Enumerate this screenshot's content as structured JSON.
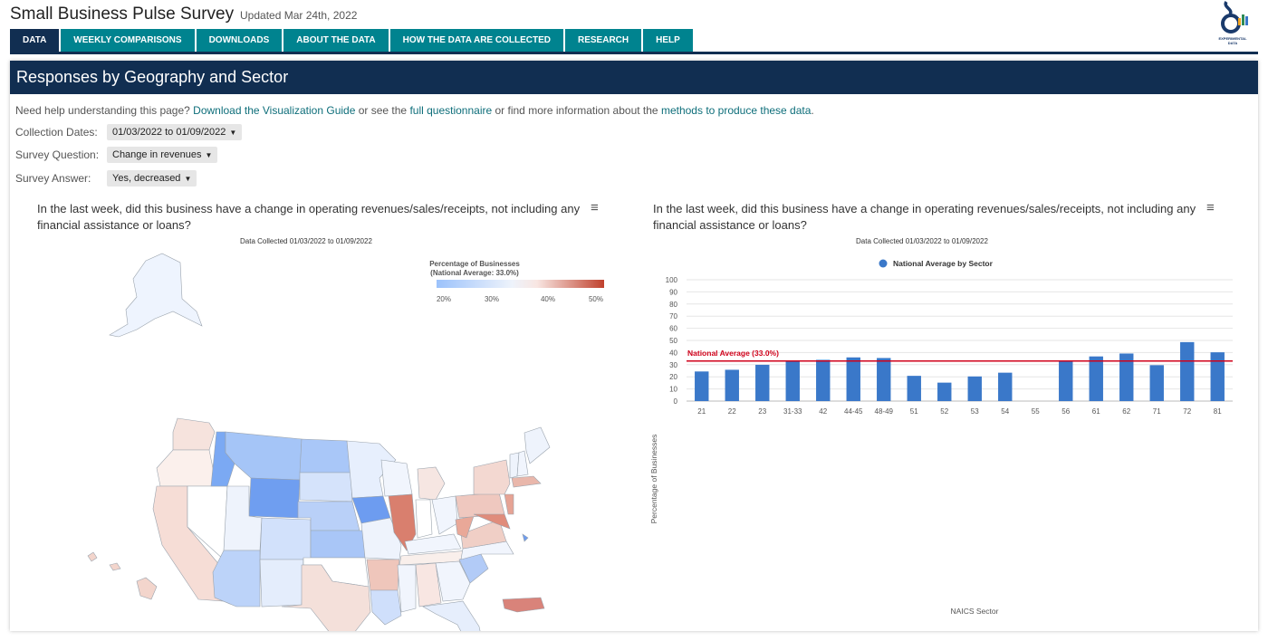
{
  "header": {
    "title": "Small Business Pulse Survey",
    "updated": "Updated Mar 24th, 2022",
    "logo_text": "EXPERIMENTAL DATA"
  },
  "nav": {
    "tabs": [
      "DATA",
      "WEEKLY COMPARISONS",
      "DOWNLOADS",
      "ABOUT THE DATA",
      "HOW THE DATA ARE COLLECTED",
      "RESEARCH",
      "HELP"
    ],
    "active": "DATA"
  },
  "panel": {
    "title": "Responses by Geography and Sector",
    "help": {
      "t1": "Need help understanding this page? ",
      "l1": "Download the Visualization Guide",
      "t2": " or see the ",
      "l2": "full questionnaire",
      "t3": " or find more information about the ",
      "l3": "methods to produce these data",
      "t4": "."
    }
  },
  "filters": {
    "collection_label": "Collection Dates:",
    "collection_value": "01/03/2022 to 01/09/2022",
    "question_label": "Survey Question:",
    "question_value": "Change in revenues",
    "answer_label": "Survey Answer:",
    "answer_value": "Yes, decreased"
  },
  "map": {
    "title": "In the last week, did this business have a change in operating revenues/sales/receipts, not including any financial assistance or loans?",
    "subtitle": "Data Collected 01/03/2022 to 01/09/2022",
    "legend_title": "Percentage of Businesses",
    "legend_sub": "(National Average: 33.0%)",
    "legend_ticks": [
      "20%",
      "30%",
      "40%",
      "50%"
    ],
    "colors": {
      "low": "#4f8ef7",
      "mid": "#ffffff",
      "high": "#c0412d"
    }
  },
  "chart_data": {
    "type": "bar",
    "title": "In the last week, did this business have a change in operating revenues/sales/receipts, not including any financial assistance or loans?",
    "subtitle": "Data Collected 01/03/2022 to 01/09/2022",
    "categories": [
      "21",
      "22",
      "23",
      "31-33",
      "42",
      "44-45",
      "48-49",
      "51",
      "52",
      "53",
      "54",
      "55",
      "56",
      "61",
      "62",
      "71",
      "72",
      "81"
    ],
    "series": [
      {
        "name": "National Average by Sector",
        "values": [
          24.4,
          25.8,
          29.9,
          32.8,
          34.0,
          36.0,
          35.5,
          20.8,
          15.2,
          20.3,
          23.4,
          null,
          33.6,
          36.8,
          39.2,
          29.6,
          48.6,
          40.2
        ]
      }
    ],
    "xlabel": "NAICS Sector",
    "ylabel": "Percentage of Businesses",
    "ylim": [
      0,
      100
    ],
    "yticks": [
      "0",
      "10",
      "20",
      "30",
      "40",
      "50",
      "60",
      "70",
      "80",
      "90",
      "100"
    ],
    "reference_line": {
      "label": "National Average (33.0%)",
      "value": 33.0,
      "color": "#d0021b"
    },
    "bar_color": "#3a78c9",
    "grid": true,
    "legend": "top-center"
  }
}
